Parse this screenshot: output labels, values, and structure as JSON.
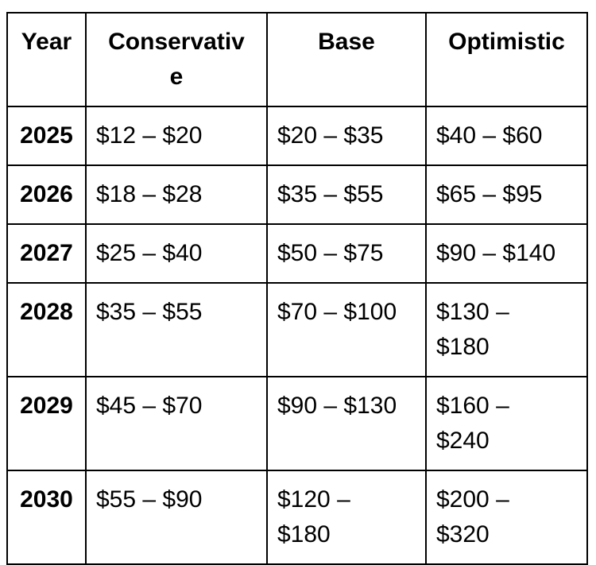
{
  "chart_data": {
    "type": "table",
    "columns": [
      "Year",
      "Conservative",
      "Base",
      "Optimistic"
    ],
    "rows": [
      [
        "2025",
        "$12 – $20",
        "$20 – $35",
        "$40 – $60"
      ],
      [
        "2026",
        "$18 – $28",
        "$35 – $55",
        "$65 – $95"
      ],
      [
        "2027",
        "$25 – $40",
        "$50 – $75",
        "$90 – $140"
      ],
      [
        "2028",
        "$35 – $55",
        "$70 – $100",
        "$130 – $180"
      ],
      [
        "2029",
        "$45 – $70",
        "$90 – $130",
        "$160 – $240"
      ],
      [
        "2030",
        "$55 – $90",
        "$120 – $180",
        "$200 – $320"
      ]
    ],
    "layout": {
      "border_color": "#000000",
      "background_color": "#ffffff",
      "header_bold": true,
      "year_column_bold": true,
      "header_alignment": "center",
      "value_alignment": "left",
      "grid": "all-borders"
    }
  }
}
